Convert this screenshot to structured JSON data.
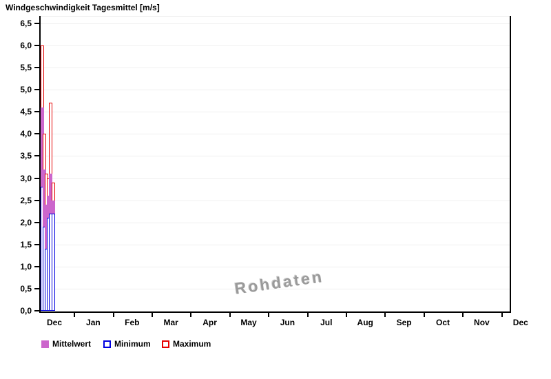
{
  "title": "Windgeschwindigkeit Tagesmittel [m/s]",
  "watermark": "Rohdaten",
  "colors": {
    "mittelwert": "#CC66CC",
    "minimum": "#0000E0",
    "maximum": "#E60000",
    "gridline": "#EFEFEF",
    "axis": "#000000",
    "watermark": "#9A9A9A"
  },
  "legend": [
    {
      "label": "Mittelwert",
      "style": "fill",
      "color": "#CC66CC"
    },
    {
      "label": "Minimum",
      "style": "outline",
      "color": "#0000E0"
    },
    {
      "label": "Maximum",
      "style": "outline",
      "color": "#E60000"
    }
  ],
  "chart_data": {
    "type": "bar",
    "title": "Windgeschwindigkeit Tagesmittel [m/s]",
    "unit": "m/s",
    "ylim": [
      0,
      6.5
    ],
    "ytick_step": 0.5,
    "ytick_labels_ascending": [
      "0,0",
      "0,5",
      "1,0",
      "1,5",
      "2,0",
      "2,5",
      "3,0",
      "3,5",
      "4,0",
      "4,5",
      "5,0",
      "5,5",
      "6,0",
      "6,5"
    ],
    "month_labels": [
      "Dec",
      "Jan",
      "Feb",
      "Mar",
      "Apr",
      "May",
      "Jun",
      "Jul",
      "Aug",
      "Sep",
      "Oct",
      "Nov",
      "Dec"
    ],
    "grid": "horizontal-only",
    "legend_position": "bottom-left",
    "data_note": "Daily min/mean/max bars overlap per day; only the first ~6 days of the first December contain data, rest of year is empty",
    "categories": [
      "day1",
      "day2",
      "day3",
      "day4",
      "day5",
      "day6"
    ],
    "series": [
      {
        "name": "Maximum",
        "values": [
          6.0,
          4.0,
          3.1,
          3.0,
          4.7,
          2.9
        ]
      },
      {
        "name": "Mittelwert",
        "values": [
          4.6,
          3.2,
          2.4,
          2.6,
          3.1,
          2.5
        ]
      },
      {
        "name": "Minimum",
        "values": [
          2.8,
          1.9,
          1.4,
          2.1,
          2.2,
          2.2
        ]
      }
    ]
  }
}
